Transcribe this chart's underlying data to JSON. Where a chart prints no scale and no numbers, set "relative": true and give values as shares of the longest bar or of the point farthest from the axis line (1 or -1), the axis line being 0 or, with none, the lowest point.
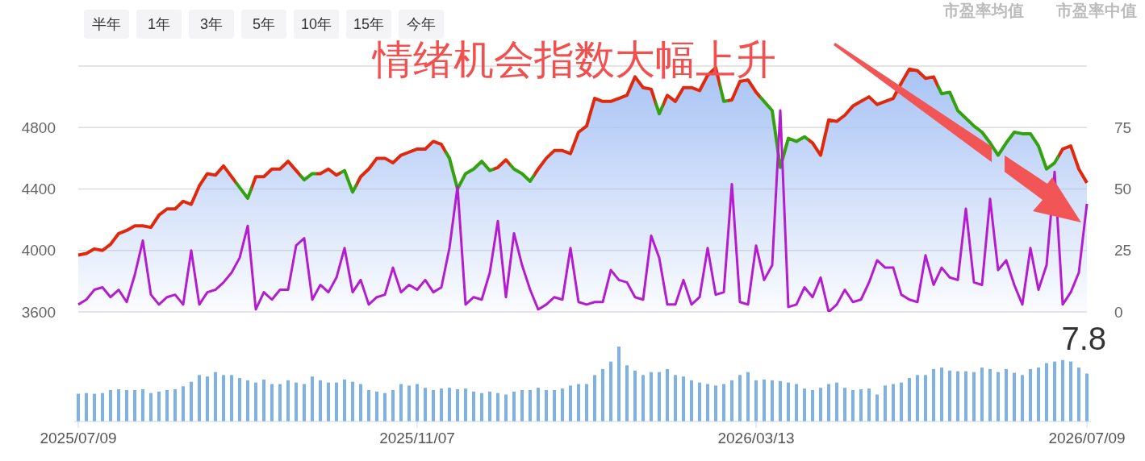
{
  "chart_data": [
    {
      "type": "area",
      "title": "情绪机会指数大幅上升",
      "annotations": [
        "半年",
        "1年",
        "3年",
        "5年",
        "10年",
        "15年",
        "今年",
        "市盈率均值",
        "市盈率中值"
      ],
      "categories": [
        null,
        null,
        null,
        null,
        null,
        null,
        null,
        null,
        null,
        null,
        null,
        null,
        null,
        null,
        null,
        null,
        null,
        null,
        null,
        null,
        null,
        null,
        null,
        null,
        null,
        null,
        null,
        null,
        null,
        null,
        null,
        null,
        null,
        null,
        null,
        null,
        null,
        null,
        null,
        null,
        null,
        null,
        null,
        null,
        null,
        null,
        null,
        null,
        null,
        null,
        null,
        null,
        null,
        null,
        null,
        null,
        null,
        null,
        null,
        null,
        null,
        null,
        null,
        null,
        null,
        null,
        null,
        null,
        null,
        null,
        null,
        null,
        null,
        null,
        null,
        null,
        null,
        null,
        null,
        null,
        null,
        null,
        null,
        null,
        null,
        null,
        null,
        null,
        null,
        null,
        null,
        null,
        null,
        null,
        null,
        null,
        null,
        null,
        null,
        null,
        null,
        null,
        null,
        null,
        null,
        null,
        null,
        null,
        null,
        null,
        null,
        null,
        null,
        null,
        null,
        null,
        null,
        null,
        null,
        null,
        null,
        null,
        null,
        null,
        null,
        null
      ],
      "series": [
        {
          "color": "#a8c3f5",
          "colors": [
            "#e0280c",
            "#e0280c",
            "#e0280c",
            "#e0280c",
            "#e0280c",
            "#e0280c",
            "#e0280c",
            "#e0280c",
            "#e0280c",
            "#e0280c",
            "#e0280c",
            "#e0280c",
            "#e0280c",
            "#e0280c",
            "#e0280c",
            "#e0280c",
            "#e0280c",
            "#e0280c",
            "#e0280c",
            "#e0280c",
            "#34a10f",
            "#34a10f",
            "#e0280c",
            "#e0280c",
            "#e0280c",
            "#e0280c",
            "#e0280c",
            "#e0280c",
            "#34a10f",
            "#34a10f",
            "#e0280c",
            "#e0280c",
            "#e0280c",
            "#34a10f",
            "#34a10f",
            "#e0280c",
            "#e0280c",
            "#e0280c",
            "#e0280c",
            "#e0280c",
            "#e0280c",
            "#e0280c",
            "#e0280c",
            "#e0280c",
            "#e0280c",
            "#e0280c",
            "#34a10f",
            "#34a10f",
            "#34a10f",
            "#34a10f",
            "#34a10f",
            "#34a10f",
            "#e0280c",
            "#e0280c",
            "#34a10f",
            "#34a10f",
            "#34a10f",
            "#e0280c",
            "#e0280c",
            "#e0280c",
            "#e0280c",
            "#e0280c",
            "#e0280c",
            "#e0280c",
            "#e0280c",
            "#e0280c",
            "#e0280c",
            "#e0280c",
            "#e0280c",
            "#e0280c",
            "#e0280c",
            "#e0280c",
            "#34a10f",
            "#e0280c",
            "#e0280c",
            "#e0280c",
            "#e0280c",
            "#e0280c",
            "#e0280c",
            "#e0280c",
            "#34a10f",
            "#e0280c",
            "#e0280c",
            "#e0280c",
            "#e0280c",
            "#34a10f",
            "#34a10f",
            "#34a10f",
            "#34a10f",
            "#34a10f",
            "#34a10f",
            "#e0280c",
            "#e0280c",
            "#e0280c",
            "#e0280c",
            "#e0280c",
            "#e0280c",
            "#e0280c",
            "#e0280c",
            "#e0280c",
            "#e0280c",
            "#e0280c",
            "#e0280c",
            "#e0280c",
            "#e0280c",
            "#e0280c",
            "#e0280c",
            "#34a10f",
            "#34a10f",
            "#34a10f",
            "#34a10f",
            "#34a10f",
            "#34a10f",
            "#34a10f",
            "#34a10f",
            "#34a10f",
            "#34a10f",
            "#34a10f",
            "#34a10f",
            "#34a10f",
            "#34a10f",
            "#34a10f",
            "#e0280c",
            "#e0280c",
            "#e0280c",
            "#e0280c"
          ],
          "values": [
            3970,
            3980,
            4010,
            4000,
            4040,
            4110,
            4130,
            4160,
            4160,
            4150,
            4230,
            4270,
            4270,
            4320,
            4300,
            4420,
            4500,
            4490,
            4550,
            4480,
            4410,
            4340,
            4480,
            4480,
            4530,
            4530,
            4580,
            4520,
            4460,
            4500,
            4500,
            4530,
            4490,
            4520,
            4380,
            4480,
            4530,
            4600,
            4600,
            4570,
            4620,
            4640,
            4660,
            4660,
            4710,
            4690,
            4600,
            4400,
            4500,
            4530,
            4580,
            4520,
            4540,
            4590,
            4530,
            4500,
            4450,
            4530,
            4600,
            4650,
            4650,
            4630,
            4770,
            4810,
            4990,
            4970,
            4970,
            4990,
            5010,
            5130,
            5060,
            5050,
            4890,
            5010,
            4970,
            5060,
            5060,
            5040,
            5140,
            5190,
            4970,
            4980,
            5100,
            5110,
            5030,
            4970,
            4910,
            4540,
            4730,
            4710,
            4740,
            4700,
            4620,
            4850,
            4840,
            4880,
            4940,
            4970,
            5000,
            4950,
            4970,
            4990,
            5090,
            5180,
            5170,
            5120,
            5130,
            5020,
            5030,
            4910,
            4860,
            4810,
            4770,
            4700,
            4620,
            4700,
            4770,
            4760,
            4760,
            4680,
            4530,
            4570,
            4660,
            4680,
            4530,
            4440
          ]
        },
        {
          "type": "line",
          "axis": "y2",
          "color": "#b51ccf",
          "values": [
            3,
            5,
            9,
            10,
            6,
            9,
            4,
            15,
            29,
            7,
            3,
            6,
            7,
            3,
            25,
            3,
            8,
            9,
            12,
            16,
            22,
            35,
            1,
            8,
            5,
            9,
            9,
            27,
            30,
            5,
            11,
            8,
            14,
            26,
            8,
            13,
            3,
            6,
            7,
            18,
            8,
            11,
            9,
            13,
            8,
            10,
            26,
            51,
            3,
            6,
            5,
            16,
            37,
            6,
            32,
            19,
            9,
            1,
            3,
            6,
            5,
            26,
            4,
            3,
            4,
            4,
            17,
            13,
            12,
            6,
            5,
            31,
            22,
            3,
            3,
            13,
            3,
            6,
            26,
            7,
            8,
            52,
            4,
            3,
            27,
            13,
            19,
            82,
            2,
            3,
            10,
            6,
            14,
            0,
            3,
            9,
            4,
            5,
            12,
            21,
            18,
            18,
            7,
            5,
            4,
            23,
            11,
            18,
            14,
            13,
            42,
            12,
            11,
            46,
            17,
            21,
            11,
            3,
            26,
            9,
            19,
            57,
            3,
            8,
            16,
            44
          ]
        }
      ],
      "ylim": [
        3600,
        5200
      ],
      "yticks": [
        3600,
        4000,
        4400,
        4800,
        {
          "value": 5200,
          "label": null
        }
      ],
      "y2lim": [
        0,
        100
      ],
      "y2ticks": [
        0,
        25,
        50,
        75
      ],
      "grid": "y"
    },
    {
      "type": "bar",
      "relative": true,
      "annotations": [
        "7.8"
      ],
      "color": "#7eb1ea",
      "categories": [
        "2025/07/09",
        null,
        null,
        null,
        null,
        null,
        null,
        null,
        null,
        null,
        null,
        null,
        null,
        null,
        null,
        null,
        null,
        null,
        null,
        null,
        null,
        null,
        null,
        null,
        null,
        null,
        null,
        null,
        null,
        null,
        null,
        null,
        null,
        null,
        null,
        null,
        null,
        null,
        null,
        null,
        null,
        null,
        "2025/11/07",
        null,
        null,
        null,
        null,
        null,
        null,
        null,
        null,
        null,
        null,
        null,
        null,
        null,
        null,
        null,
        null,
        null,
        null,
        null,
        null,
        null,
        null,
        null,
        null,
        null,
        null,
        null,
        null,
        null,
        null,
        null,
        null,
        null,
        null,
        null,
        null,
        null,
        null,
        null,
        null,
        null,
        "2026/03/13",
        null,
        null,
        null,
        null,
        null,
        null,
        null,
        null,
        null,
        null,
        null,
        null,
        null,
        null,
        null,
        null,
        null,
        null,
        null,
        null,
        null,
        null,
        null,
        null,
        null,
        null,
        null,
        null,
        null,
        null,
        null,
        null,
        null,
        null,
        null,
        null,
        null,
        null,
        null,
        null,
        "2026/07/09"
      ],
      "values": [
        0.37,
        0.38,
        0.37,
        0.38,
        0.42,
        0.43,
        0.42,
        0.42,
        0.43,
        0.38,
        0.4,
        0.42,
        0.43,
        0.47,
        0.53,
        0.62,
        0.6,
        0.66,
        0.62,
        0.62,
        0.58,
        0.55,
        0.52,
        0.56,
        0.5,
        0.5,
        0.55,
        0.52,
        0.5,
        0.6,
        0.55,
        0.52,
        0.52,
        0.56,
        0.53,
        0.5,
        0.42,
        0.4,
        0.38,
        0.42,
        0.5,
        0.48,
        0.5,
        0.45,
        0.42,
        0.44,
        0.45,
        0.43,
        0.44,
        0.4,
        0.38,
        0.4,
        0.38,
        0.36,
        0.4,
        0.42,
        0.42,
        0.45,
        0.42,
        0.42,
        0.44,
        0.48,
        0.5,
        0.5,
        0.62,
        0.7,
        0.8,
        1,
        0.75,
        0.68,
        0.62,
        0.66,
        0.66,
        0.7,
        0.62,
        0.6,
        0.55,
        0.52,
        0.5,
        0.48,
        0.5,
        0.55,
        0.62,
        0.66,
        0.55,
        0.56,
        0.55,
        0.54,
        0.52,
        0.5,
        0.44,
        0.42,
        0.45,
        0.5,
        0.52,
        0.45,
        0.42,
        0.43,
        0.44,
        0.36,
        0.48,
        0.5,
        0.52,
        0.58,
        0.62,
        0.62,
        0.7,
        0.72,
        0.68,
        0.67,
        0.67,
        0.66,
        0.72,
        0.7,
        0.66,
        0.7,
        0.65,
        0.62,
        0.7,
        0.72,
        0.78,
        0.8,
        0.82,
        0.8,
        0.72,
        0.64
      ]
    }
  ]
}
